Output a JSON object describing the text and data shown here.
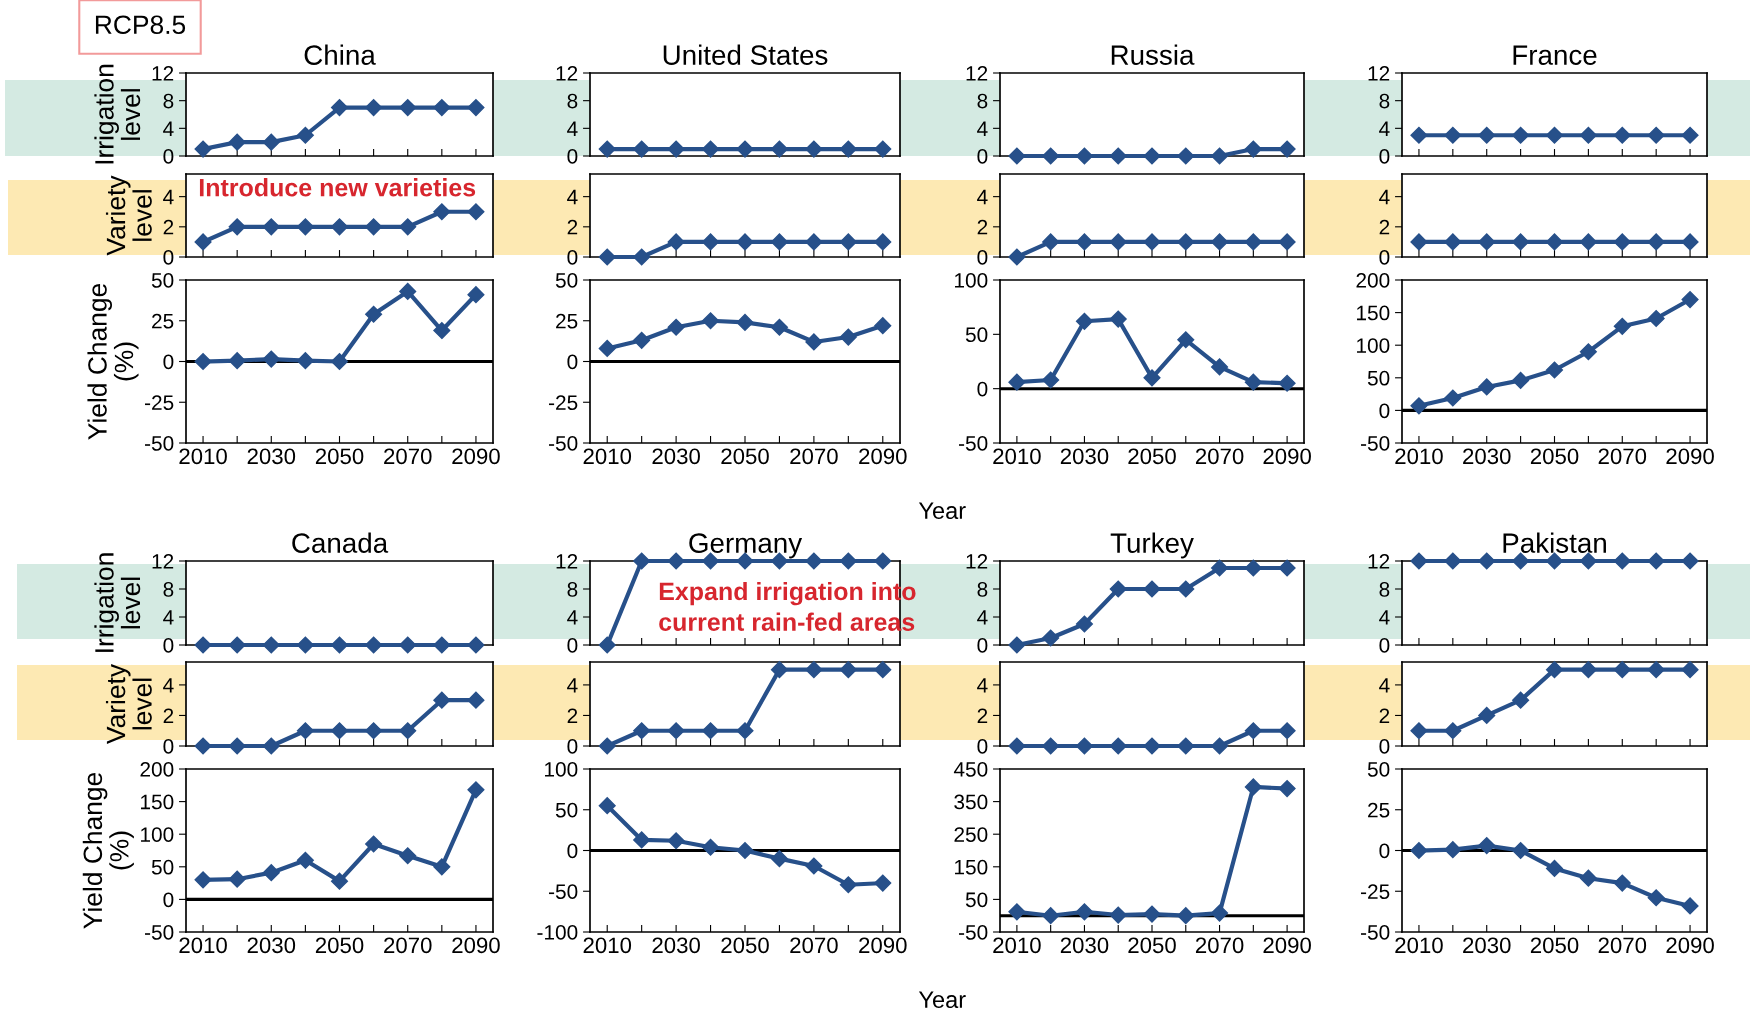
{
  "chart_data": [
    {
      "type": "line",
      "title": "China",
      "ylabel": "Irrigation\nlevel",
      "annotations": [
        "RCP8.5"
      ],
      "categories": [
        "2010",
        null,
        "2030",
        null,
        "2050",
        null,
        "2070",
        null,
        "2090"
      ],
      "values": [
        1,
        2,
        2,
        3,
        7,
        7,
        7,
        7,
        7
      ],
      "color": "#27508a",
      "marker": "diamond",
      "ylim": [
        0,
        12
      ],
      "yticks": [
        0,
        4,
        8,
        12
      ],
      "tick_labels": "y"
    },
    {
      "type": "line",
      "ylabel": "Variety\nlevel",
      "annotations": [
        "Introduce new varieties"
      ],
      "categories": [
        "2010",
        null,
        "2030",
        null,
        "2050",
        null,
        "2070",
        null,
        "2090"
      ],
      "values": [
        1,
        2,
        2,
        2,
        2,
        2,
        2,
        3,
        3
      ],
      "color": "#27508a",
      "marker": "diamond",
      "ylim": [
        0,
        5.5
      ],
      "yticks": [
        0,
        2,
        4
      ],
      "tick_labels": "y"
    },
    {
      "type": "line",
      "ylabel": "Yield Change\n(%)",
      "categories": [
        "2010",
        null,
        "2030",
        null,
        "2050",
        null,
        "2070",
        null,
        "2090"
      ],
      "values": [
        0,
        0.5,
        1.5,
        0.5,
        0,
        29,
        43,
        19,
        41
      ],
      "color": "#27508a",
      "marker": "diamond",
      "ylim": [
        -50,
        50
      ],
      "yticks": [
        -50,
        -25,
        0,
        25,
        50
      ],
      "ref_lines": [
        {
          "axis": "y",
          "value": 0
        }
      ]
    },
    {
      "type": "line",
      "title": "United States",
      "categories": [
        "2010",
        null,
        "2030",
        null,
        "2050",
        null,
        "2070",
        null,
        "2090"
      ],
      "values": [
        1,
        1,
        1,
        1,
        1,
        1,
        1,
        1,
        1
      ],
      "color": "#27508a",
      "marker": "diamond",
      "ylim": [
        0,
        12
      ],
      "yticks": [
        0,
        4,
        8,
        12
      ],
      "tick_labels": "y"
    },
    {
      "type": "line",
      "categories": [
        "2010",
        null,
        "2030",
        null,
        "2050",
        null,
        "2070",
        null,
        "2090"
      ],
      "values": [
        0,
        0,
        1,
        1,
        1,
        1,
        1,
        1,
        1
      ],
      "color": "#27508a",
      "marker": "diamond",
      "ylim": [
        0,
        5.5
      ],
      "yticks": [
        0,
        2,
        4
      ],
      "tick_labels": "y"
    },
    {
      "type": "line",
      "categories": [
        "2010",
        null,
        "2030",
        null,
        "2050",
        null,
        "2070",
        null,
        "2090"
      ],
      "values": [
        8,
        13,
        21,
        25,
        24,
        21,
        12,
        15,
        22
      ],
      "color": "#27508a",
      "marker": "diamond",
      "ylim": [
        -50,
        50
      ],
      "yticks": [
        -50,
        -25,
        0,
        25,
        50
      ],
      "ref_lines": [
        {
          "axis": "y",
          "value": 0
        }
      ]
    },
    {
      "type": "line",
      "title": "Russia",
      "categories": [
        "2010",
        null,
        "2030",
        null,
        "2050",
        null,
        "2070",
        null,
        "2090"
      ],
      "values": [
        0,
        0,
        0,
        0,
        0,
        0,
        0,
        1,
        1
      ],
      "color": "#27508a",
      "marker": "diamond",
      "ylim": [
        0,
        12
      ],
      "yticks": [
        0,
        4,
        8,
        12
      ],
      "tick_labels": "y"
    },
    {
      "type": "line",
      "categories": [
        "2010",
        null,
        "2030",
        null,
        "2050",
        null,
        "2070",
        null,
        "2090"
      ],
      "values": [
        0,
        1,
        1,
        1,
        1,
        1,
        1,
        1,
        1
      ],
      "color": "#27508a",
      "marker": "diamond",
      "ylim": [
        0,
        5.5
      ],
      "yticks": [
        0,
        2,
        4
      ],
      "tick_labels": "y"
    },
    {
      "type": "line",
      "xlabel": "Year",
      "categories": [
        "2010",
        null,
        "2030",
        null,
        "2050",
        null,
        "2070",
        null,
        "2090"
      ],
      "values": [
        6,
        8,
        62,
        64,
        10,
        45,
        20,
        6,
        5
      ],
      "color": "#27508a",
      "marker": "diamond",
      "ylim": [
        -50,
        100
      ],
      "yticks": [
        -50,
        0,
        50,
        100
      ],
      "ref_lines": [
        {
          "axis": "y",
          "value": 0
        }
      ]
    },
    {
      "type": "line",
      "title": "France",
      "categories": [
        "2010",
        null,
        "2030",
        null,
        "2050",
        null,
        "2070",
        null,
        "2090"
      ],
      "values": [
        3,
        3,
        3,
        3,
        3,
        3,
        3,
        3,
        3
      ],
      "color": "#27508a",
      "marker": "diamond",
      "ylim": [
        0,
        12
      ],
      "yticks": [
        0,
        4,
        8,
        12
      ],
      "tick_labels": "y"
    },
    {
      "type": "line",
      "categories": [
        "2010",
        null,
        "2030",
        null,
        "2050",
        null,
        "2070",
        null,
        "2090"
      ],
      "values": [
        1,
        1,
        1,
        1,
        1,
        1,
        1,
        1,
        1
      ],
      "color": "#27508a",
      "marker": "diamond",
      "ylim": [
        0,
        5.5
      ],
      "yticks": [
        0,
        2,
        4
      ],
      "tick_labels": "y"
    },
    {
      "type": "line",
      "categories": [
        "2010",
        null,
        "2030",
        null,
        "2050",
        null,
        "2070",
        null,
        "2090"
      ],
      "values": [
        7,
        19,
        36,
        46,
        62,
        90,
        129,
        141,
        170
      ],
      "color": "#27508a",
      "marker": "diamond",
      "ylim": [
        -50,
        200
      ],
      "yticks": [
        -50,
        0,
        50,
        100,
        150,
        200
      ],
      "ref_lines": [
        {
          "axis": "y",
          "value": 0
        }
      ]
    },
    {
      "type": "line",
      "title": "Canada",
      "ylabel": "Irrigation\nlevel",
      "categories": [
        "2010",
        null,
        "2030",
        null,
        "2050",
        null,
        "2070",
        null,
        "2090"
      ],
      "values": [
        0,
        0,
        0,
        0,
        0,
        0,
        0,
        0,
        0
      ],
      "color": "#27508a",
      "marker": "diamond",
      "ylim": [
        0,
        12
      ],
      "yticks": [
        0,
        4,
        8,
        12
      ],
      "tick_labels": "y"
    },
    {
      "type": "line",
      "ylabel": "Variety\nlevel",
      "categories": [
        "2010",
        null,
        "2030",
        null,
        "2050",
        null,
        "2070",
        null,
        "2090"
      ],
      "values": [
        0,
        0,
        0,
        1,
        1,
        1,
        1,
        3,
        3
      ],
      "color": "#27508a",
      "marker": "diamond",
      "ylim": [
        0,
        5.5
      ],
      "yticks": [
        0,
        2,
        4
      ],
      "tick_labels": "y"
    },
    {
      "type": "line",
      "ylabel": "Yield Change\n(%)",
      "categories": [
        "2010",
        null,
        "2030",
        null,
        "2050",
        null,
        "2070",
        null,
        "2090"
      ],
      "values": [
        30,
        31,
        41,
        60,
        28,
        85,
        67,
        50,
        168
      ],
      "color": "#27508a",
      "marker": "diamond",
      "ylim": [
        -50,
        200
      ],
      "yticks": [
        -50,
        0,
        50,
        100,
        150,
        200
      ],
      "ref_lines": [
        {
          "axis": "y",
          "value": 0
        }
      ]
    },
    {
      "type": "line",
      "title": "Germany",
      "annotations": [
        "Expand irrigation into\ncurrent rain-fed areas"
      ],
      "categories": [
        "2010",
        null,
        "2030",
        null,
        "2050",
        null,
        "2070",
        null,
        "2090"
      ],
      "values": [
        0,
        12,
        12,
        12,
        12,
        12,
        12,
        12,
        12
      ],
      "color": "#27508a",
      "marker": "diamond",
      "ylim": [
        0,
        12
      ],
      "yticks": [
        0,
        4,
        8,
        12
      ],
      "tick_labels": "y"
    },
    {
      "type": "line",
      "categories": [
        "2010",
        null,
        "2030",
        null,
        "2050",
        null,
        "2070",
        null,
        "2090"
      ],
      "values": [
        0,
        1,
        1,
        1,
        1,
        5,
        5,
        5,
        5
      ],
      "color": "#27508a",
      "marker": "diamond",
      "ylim": [
        0,
        5.5
      ],
      "yticks": [
        0,
        2,
        4
      ],
      "tick_labels": "y"
    },
    {
      "type": "line",
      "categories": [
        "2010",
        null,
        "2030",
        null,
        "2050",
        null,
        "2070",
        null,
        "2090"
      ],
      "values": [
        55,
        13,
        12,
        4,
        0,
        -10,
        -19,
        -42,
        -40
      ],
      "color": "#27508a",
      "marker": "diamond",
      "ylim": [
        -100,
        100
      ],
      "yticks": [
        -100,
        -50,
        0,
        50,
        100
      ],
      "ref_lines": [
        {
          "axis": "y",
          "value": 0
        }
      ]
    },
    {
      "type": "line",
      "title": "Turkey",
      "categories": [
        "2010",
        null,
        "2030",
        null,
        "2050",
        null,
        "2070",
        null,
        "2090"
      ],
      "values": [
        0,
        1,
        3,
        8,
        8,
        8,
        11,
        11,
        11
      ],
      "color": "#27508a",
      "marker": "diamond",
      "ylim": [
        0,
        12
      ],
      "yticks": [
        0,
        4,
        8,
        12
      ],
      "tick_labels": "y"
    },
    {
      "type": "line",
      "categories": [
        "2010",
        null,
        "2030",
        null,
        "2050",
        null,
        "2070",
        null,
        "2090"
      ],
      "values": [
        0,
        0,
        0,
        0,
        0,
        0,
        0,
        1,
        1
      ],
      "color": "#27508a",
      "marker": "diamond",
      "ylim": [
        0,
        5.5
      ],
      "yticks": [
        0,
        2,
        4
      ],
      "tick_labels": "y"
    },
    {
      "type": "line",
      "xlabel": "Year",
      "categories": [
        "2010",
        null,
        "2030",
        null,
        "2050",
        null,
        "2070",
        null,
        "2090"
      ],
      "values": [
        12,
        0,
        12,
        2,
        5,
        0,
        8,
        395,
        390
      ],
      "color": "#27508a",
      "marker": "diamond",
      "ylim": [
        -50,
        450
      ],
      "yticks": [
        -50,
        50,
        150,
        250,
        350,
        450
      ],
      "ref_lines": [
        {
          "axis": "y",
          "value": 0
        }
      ]
    },
    {
      "type": "line",
      "title": "Pakistan",
      "categories": [
        "2010",
        null,
        "2030",
        null,
        "2050",
        null,
        "2070",
        null,
        "2090"
      ],
      "values": [
        12,
        12,
        12,
        12,
        12,
        12,
        12,
        12,
        12
      ],
      "color": "#27508a",
      "marker": "diamond",
      "ylim": [
        0,
        12
      ],
      "yticks": [
        0,
        4,
        8,
        12
      ],
      "tick_labels": "y"
    },
    {
      "type": "line",
      "categories": [
        "2010",
        null,
        "2030",
        null,
        "2050",
        null,
        "2070",
        null,
        "2090"
      ],
      "values": [
        1,
        1,
        2,
        3,
        5,
        5,
        5,
        5,
        5
      ],
      "color": "#27508a",
      "marker": "diamond",
      "ylim": [
        0,
        5.5
      ],
      "yticks": [
        0,
        2,
        4
      ],
      "tick_labels": "y"
    },
    {
      "type": "line",
      "categories": [
        "2010",
        null,
        "2030",
        null,
        "2050",
        null,
        "2070",
        null,
        "2090"
      ],
      "values": [
        0,
        0.5,
        3,
        0,
        -11,
        -17,
        -20,
        -29,
        -34
      ],
      "color": "#27508a",
      "marker": "diamond",
      "ylim": [
        -50,
        50
      ],
      "yticks": [
        -50,
        -25,
        0,
        25,
        50
      ],
      "ref_lines": [
        {
          "axis": "y",
          "value": 0
        }
      ]
    }
  ]
}
